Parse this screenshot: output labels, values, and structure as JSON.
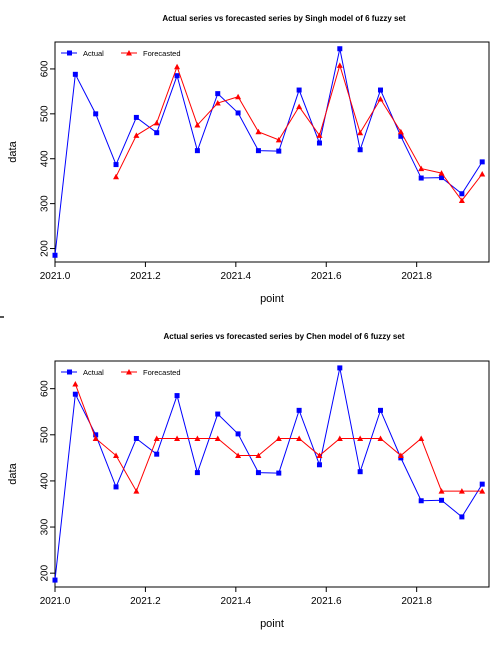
{
  "chart_data": [
    {
      "type": "line",
      "title": "Actual series vs forecasted series by Singh model of 6 fuzzy set",
      "xlabel": "point",
      "ylabel": "data",
      "xlim": [
        2021.0,
        2021.96
      ],
      "ylim": [
        170,
        660
      ],
      "x_ticks": [
        "2021.0",
        "2021.2",
        "2021.4",
        "2021.6",
        "2021.8"
      ],
      "y_ticks": [
        "200",
        "300",
        "400",
        "500",
        "600"
      ],
      "legend_position": "top-left",
      "grid": false,
      "x": [
        2021.0,
        2021.045,
        2021.09,
        2021.135,
        2021.18,
        2021.225,
        2021.27,
        2021.315,
        2021.36,
        2021.405,
        2021.45,
        2021.495,
        2021.54,
        2021.585,
        2021.63,
        2021.675,
        2021.72,
        2021.765,
        2021.81,
        2021.855,
        2021.9,
        2021.945
      ],
      "series": [
        {
          "name": "Actual",
          "color": "#0000ff",
          "marker": "square",
          "values": [
            185,
            588,
            500,
            387,
            492,
            458,
            585,
            418,
            545,
            502,
            418,
            417,
            553,
            435,
            645,
            420,
            553,
            450,
            357,
            358,
            322,
            393
          ]
        },
        {
          "name": "Forecasted",
          "color": "#ff0000",
          "marker": "triangle",
          "values": [
            null,
            null,
            null,
            360,
            452,
            480,
            605,
            475,
            524,
            538,
            460,
            442,
            516,
            452,
            608,
            458,
            533,
            460,
            378,
            368,
            307,
            366
          ]
        }
      ]
    },
    {
      "type": "line",
      "title": "Actual series vs forecasted series by Chen model of 6 fuzzy set",
      "xlabel": "point",
      "ylabel": "data",
      "xlim": [
        2021.0,
        2021.96
      ],
      "ylim": [
        170,
        660
      ],
      "x_ticks": [
        "2021.0",
        "2021.2",
        "2021.4",
        "2021.6",
        "2021.8"
      ],
      "y_ticks": [
        "200",
        "300",
        "400",
        "500",
        "600"
      ],
      "legend_position": "top-left",
      "grid": false,
      "x": [
        2021.0,
        2021.045,
        2021.09,
        2021.135,
        2021.18,
        2021.225,
        2021.27,
        2021.315,
        2021.36,
        2021.405,
        2021.45,
        2021.495,
        2021.54,
        2021.585,
        2021.63,
        2021.675,
        2021.72,
        2021.765,
        2021.81,
        2021.855,
        2021.9,
        2021.945
      ],
      "series": [
        {
          "name": "Actual",
          "color": "#0000ff",
          "marker": "square",
          "values": [
            185,
            588,
            500,
            387,
            492,
            458,
            585,
            418,
            545,
            502,
            418,
            417,
            553,
            435,
            645,
            420,
            553,
            450,
            357,
            358,
            322,
            393
          ]
        },
        {
          "name": "Forecasted",
          "color": "#ff0000",
          "marker": "triangle",
          "values": [
            null,
            610,
            492,
            455,
            378,
            492,
            492,
            492,
            492,
            455,
            455,
            492,
            492,
            455,
            492,
            492,
            492,
            455,
            492,
            378,
            378,
            378
          ]
        }
      ]
    }
  ]
}
